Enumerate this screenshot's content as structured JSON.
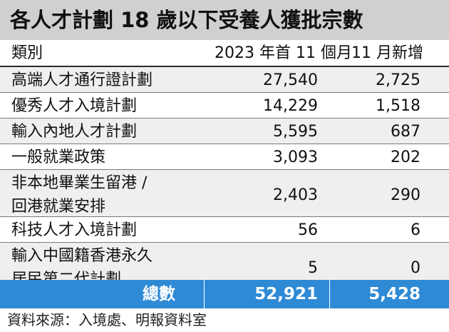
{
  "chart_data": {
    "type": "table",
    "title": "各人才計劃 18 歲以下受養人獲批宗數",
    "columns": [
      "類別",
      "2023 年首 11 個月",
      "11 月新增"
    ],
    "rows": [
      {
        "label_lines": [
          "高端人才通行證計劃"
        ],
        "first_11_months": "27,540",
        "november_new": "2,725"
      },
      {
        "label_lines": [
          "優秀人才入境計劃"
        ],
        "first_11_months": "14,229",
        "november_new": "1,518"
      },
      {
        "label_lines": [
          "輸入內地人才計劃"
        ],
        "first_11_months": "5,595",
        "november_new": "687"
      },
      {
        "label_lines": [
          "一般就業政策"
        ],
        "first_11_months": "3,093",
        "november_new": "202"
      },
      {
        "label_lines": [
          "非本地畢業生留港 /",
          "回港就業安排"
        ],
        "first_11_months": "2,403",
        "november_new": "290"
      },
      {
        "label_lines": [
          "科技人才入境計劃"
        ],
        "first_11_months": "56",
        "november_new": "6"
      },
      {
        "label_lines": [
          "輸入中國籍香港永久",
          "居民第二代計劃"
        ],
        "first_11_months": "5",
        "november_new": "0"
      }
    ],
    "total": {
      "label": "總數",
      "first_11_months": "52,921",
      "november_new": "5,428"
    },
    "source": "資料來源：入境處、明報資料室"
  },
  "colors": {
    "title_bg": "#cfd0d1",
    "row_shade": "#efefef",
    "total_bg": "#2f8ad6",
    "total_text": "#ffffff"
  }
}
